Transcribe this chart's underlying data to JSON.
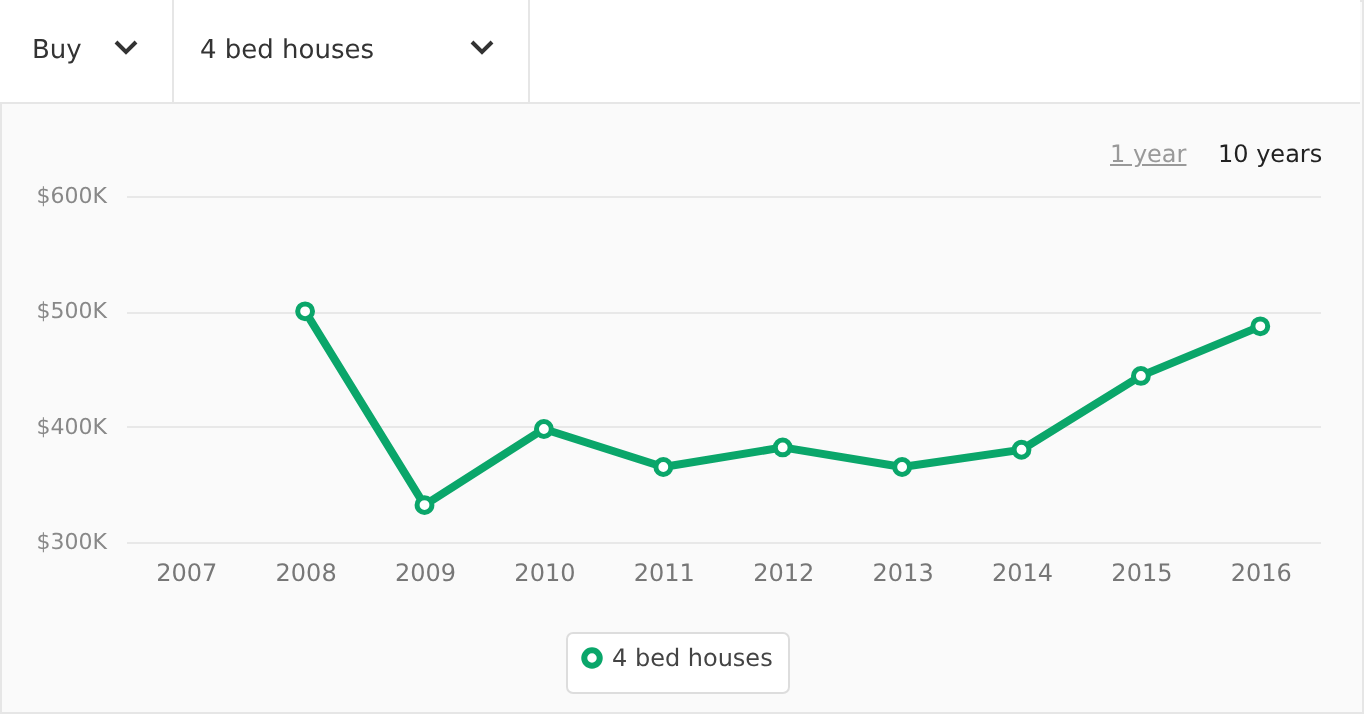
{
  "chart_data": {
    "type": "line",
    "annotations": [
      "Buy",
      "4 bed houses",
      "1 year",
      "10 years"
    ],
    "categories": [
      "2007",
      "2008",
      "2009",
      "2010",
      "2011",
      "2012",
      "2013",
      "2014",
      "2015",
      "2016"
    ],
    "series": [
      {
        "name": "4 bed houses",
        "color": "#0aa66a",
        "values": [
          null,
          500,
          332,
          398,
          365,
          382,
          365,
          380,
          444,
          487
        ]
      }
    ],
    "ylim": [
      300,
      600
    ],
    "yticks": [
      {
        "value": 300,
        "label": "$300K"
      },
      {
        "value": 400,
        "label": "$400K"
      },
      {
        "value": 500,
        "label": "$500K"
      },
      {
        "value": 600,
        "label": "$600K"
      }
    ],
    "grid": "y",
    "legend": "bottom",
    "marker": "circle",
    "line_style": "solid"
  }
}
